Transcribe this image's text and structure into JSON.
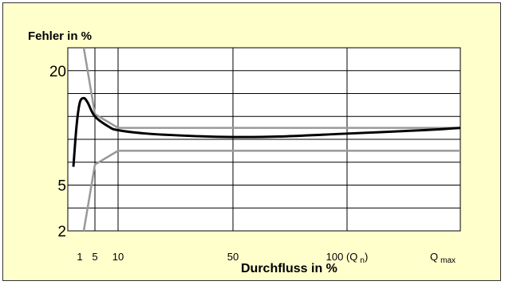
{
  "chart_data": {
    "type": "line",
    "title": "",
    "ylabel": "Fehler in %",
    "xlabel": "Durchfluss in %",
    "y_ticks": [
      {
        "label": "20",
        "level": 7
      },
      {
        "label": "5",
        "level": 2
      },
      {
        "label": "2",
        "level": 0
      }
    ],
    "y_level_count": 8,
    "x_ticks": [
      {
        "label": "1",
        "pos": 1
      },
      {
        "label": "5",
        "pos": 5
      },
      {
        "label": "10",
        "pos": 10
      },
      {
        "label": "50",
        "pos": 50
      },
      {
        "label": "100 (Q",
        "sub": "n",
        "suffix": ")",
        "pos": 100
      },
      {
        "label": "Q",
        "sub": "max",
        "suffix": "",
        "pos": 150
      }
    ],
    "x_range": [
      0,
      170
    ],
    "x_grid": [
      5,
      10,
      50,
      100
    ],
    "grid": true,
    "series": [
      {
        "color": "#999999",
        "x": [
          2,
          5,
          10,
          170
        ],
        "y": [
          8.0,
          5.1,
          4.5,
          4.5
        ]
      },
      {
        "color": "#999999",
        "x": [
          2,
          5,
          10,
          170
        ],
        "y": [
          0.0,
          2.9,
          3.5,
          3.5
        ]
      },
      {
        "color": "#000000",
        "x": [
          0,
          0.5,
          1,
          2,
          3,
          5,
          8,
          10,
          20,
          35,
          50,
          70,
          100,
          140,
          170
        ],
        "y": [
          2.8,
          4.6,
          5.6,
          5.8,
          5.6,
          5.0,
          4.55,
          4.4,
          4.25,
          4.15,
          4.1,
          4.12,
          4.25,
          4.4,
          4.5
        ]
      }
    ]
  }
}
